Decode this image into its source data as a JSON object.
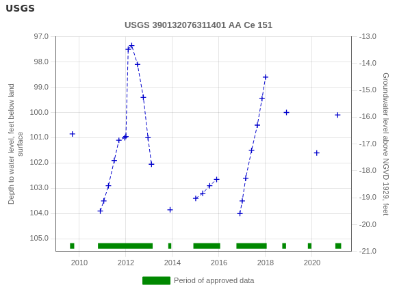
{
  "chart_data": {
    "type": "line",
    "title": "USGS 390132076311401 AA Ce 151",
    "annotations": [
      {
        "text": "USGS"
      }
    ],
    "y_label": "Depth to water level, feet below land\nsurface",
    "y2_label": "Groundwater level above NGVD 1929, feet",
    "xlim": [
      2009.0,
      2021.7
    ],
    "xticks": [
      2010,
      2012,
      2014,
      2016,
      2018,
      2020
    ],
    "ylim": [
      105.5,
      97.0
    ],
    "yticks": [
      {
        "value": 97.0,
        "label": "97.0"
      },
      {
        "value": 98.0,
        "label": "98.0"
      },
      {
        "value": 99.0,
        "label": "99.0"
      },
      {
        "value": 100.0,
        "label": "100.0"
      },
      {
        "value": 101.0,
        "label": "101.0"
      },
      {
        "value": 102.0,
        "label": "102.0"
      },
      {
        "value": 103.0,
        "label": "103.0"
      },
      {
        "value": 104.0,
        "label": "104.0"
      },
      {
        "value": 105.0,
        "label": "105.0"
      }
    ],
    "y2lim": [
      -21.0,
      -13.0
    ],
    "y2ticks": [
      {
        "value": -13.0,
        "label": "-13.0"
      },
      {
        "value": -14.0,
        "label": "-14.0"
      },
      {
        "value": -15.0,
        "label": "-15.0"
      },
      {
        "value": -16.0,
        "label": "-16.0"
      },
      {
        "value": -17.0,
        "label": "-17.0"
      },
      {
        "value": -18.0,
        "label": "-18.0"
      },
      {
        "value": -19.0,
        "label": "-19.0"
      },
      {
        "value": -20.0,
        "label": "-20.0"
      },
      {
        "value": -21.0,
        "label": "-21.0"
      }
    ],
    "grid": true,
    "legend": "bottom",
    "series": [
      {
        "type": "line",
        "color": "#0000cc",
        "line_style": "dashed",
        "marker": "plus",
        "x": [
          2009.7
        ],
        "values": [
          100.85
        ]
      },
      {
        "type": "line",
        "color": "#0000cc",
        "line_style": "dashed",
        "marker": "plus",
        "x": [
          2010.9,
          2011.05,
          2011.25,
          2011.5,
          2011.7,
          2011.95,
          2012.0,
          2012.1,
          2012.25,
          2012.5,
          2012.75,
          2012.95,
          2013.1
        ],
        "values": [
          103.9,
          103.5,
          102.9,
          101.9,
          101.1,
          101.0,
          100.95,
          97.5,
          97.35,
          98.1,
          99.4,
          101.0,
          102.05
        ]
      },
      {
        "type": "line",
        "color": "#0000cc",
        "line_style": "dashed",
        "marker": "plus",
        "x": [
          2013.9
        ],
        "values": [
          103.85
        ]
      },
      {
        "type": "line",
        "color": "#0000cc",
        "line_style": "dashed",
        "marker": "plus",
        "x": [
          2015.0,
          2015.3,
          2015.6,
          2015.9
        ],
        "values": [
          103.4,
          103.2,
          102.9,
          102.65
        ]
      },
      {
        "type": "line",
        "color": "#0000cc",
        "line_style": "dashed",
        "marker": "plus",
        "x": [
          2016.9,
          2017.0,
          2017.15,
          2017.4,
          2017.65,
          2017.85,
          2018.0
        ],
        "values": [
          104.0,
          103.5,
          102.6,
          101.5,
          100.5,
          99.45,
          98.6
        ]
      },
      {
        "type": "line",
        "color": "#0000cc",
        "line_style": "dashed",
        "marker": "plus",
        "x": [
          2018.9
        ],
        "values": [
          100.0
        ]
      },
      {
        "type": "line",
        "color": "#0000cc",
        "line_style": "dashed",
        "marker": "plus",
        "x": [
          2020.2
        ],
        "values": [
          101.6
        ]
      },
      {
        "type": "line",
        "color": "#0000cc",
        "line_style": "dashed",
        "marker": "plus",
        "x": [
          2021.1
        ],
        "values": [
          100.1
        ]
      },
      {
        "name": "Period of approved data",
        "type": "bar",
        "orientation": "horizontal",
        "color": "#008800",
        "values": [
          [
            2009.6,
            2009.78
          ],
          [
            2010.8,
            2013.15
          ],
          [
            2013.82,
            2013.95
          ],
          [
            2014.9,
            2016.05
          ],
          [
            2016.75,
            2018.05
          ],
          [
            2018.72,
            2018.88
          ],
          [
            2019.82,
            2019.97
          ],
          [
            2021.0,
            2021.25
          ]
        ],
        "y": 105.28,
        "height": 0.22
      }
    ]
  }
}
